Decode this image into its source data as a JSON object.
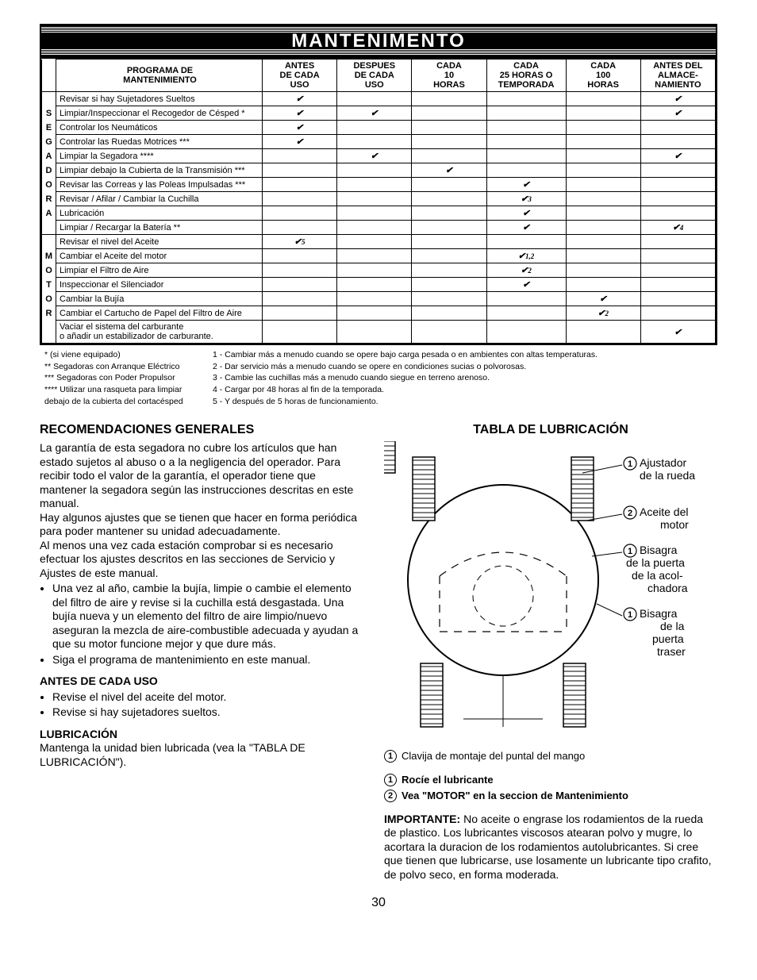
{
  "header": "MANTENIMENTO",
  "table_title_line1": "PROGRAMA DE",
  "table_title_line2": "MANTENIMIENTO",
  "columns": [
    "ANTES\nDE CADA\nUSO",
    "DESPUES\nDE CADA\nUSO",
    "CADA\n10\nHORAS",
    "CADA\n25 HORAS O\nTEMPORADA",
    "CADA\n100\nHORAS",
    "ANTES DEL\nALMACE-\nNAMIENTO"
  ],
  "side_letters_1": [
    "S",
    "E",
    "G",
    "A",
    "D",
    "O",
    "R",
    "A"
  ],
  "side_letters_2": [
    "M",
    "O",
    "T",
    "O",
    "R"
  ],
  "rows": [
    {
      "label": "Revisar si hay Sujetadores Sueltos",
      "checks": [
        "✔",
        "",
        "",
        "",
        "",
        "✔"
      ]
    },
    {
      "label": "Limpiar/Inspeccionar el Recogedor de Césped *",
      "checks": [
        "✔",
        "✔",
        "",
        "",
        "",
        "✔"
      ]
    },
    {
      "label": "Controlar los Neumáticos",
      "checks": [
        "✔",
        "",
        "",
        "",
        "",
        ""
      ]
    },
    {
      "label": "Controlar las Ruedas Motrices ***",
      "checks": [
        "✔",
        "",
        "",
        "",
        "",
        ""
      ]
    },
    {
      "label": "Limpiar la Segadora ****",
      "checks": [
        "",
        "✔",
        "",
        "",
        "",
        "✔"
      ]
    },
    {
      "label": "Limpiar debajo la Cubierta de la Transmisión ***",
      "checks": [
        "",
        "",
        "✔",
        "",
        "",
        ""
      ]
    },
    {
      "label": "Revisar las Correas y las Poleas Impulsadas ***",
      "checks": [
        "",
        "",
        "",
        "✔",
        "",
        ""
      ]
    },
    {
      "label": "Revisar / Afilar / Cambiar la Cuchilla",
      "checks": [
        "",
        "",
        "",
        "✔3",
        "",
        ""
      ]
    },
    {
      "label": "Lubricación",
      "checks": [
        "",
        "",
        "",
        "✔",
        "",
        ""
      ]
    },
    {
      "label": "Limpiar / Recargar la Batería **",
      "checks": [
        "",
        "",
        "",
        "✔",
        "",
        "✔4"
      ]
    },
    {
      "label": "Revisar el nivel del Aceite",
      "checks": [
        "✔5",
        "",
        "",
        "",
        "",
        ""
      ]
    },
    {
      "label": "Cambiar el Aceite del motor",
      "checks": [
        "",
        "",
        "",
        "✔1,2",
        "",
        ""
      ]
    },
    {
      "label": "Limpiar el Filtro de Aire",
      "checks": [
        "",
        "",
        "",
        "✔2",
        "",
        ""
      ]
    },
    {
      "label": "Inspeccionar el Silenciador",
      "checks": [
        "",
        "",
        "",
        "✔",
        "",
        ""
      ]
    },
    {
      "label": "Cambiar la Bujía",
      "checks": [
        "",
        "",
        "",
        "",
        "✔",
        ""
      ]
    },
    {
      "label": "Cambiar el Cartucho de Papel del Filtro de Aire",
      "checks": [
        "",
        "",
        "",
        "",
        "✔2",
        ""
      ]
    },
    {
      "label": "Vaciar el sistema del carburante\no añadir un estabilizador de carburante.",
      "checks": [
        "",
        "",
        "",
        "",
        "",
        "✔"
      ]
    }
  ],
  "footnotes_left": [
    "* (si viene equipado)",
    "** Segadoras con Arranque Eléctrico",
    "*** Segadoras con Poder Propulsor",
    "**** Utilizar una rasqueta para limpiar",
    "debajo de la cubierta del cortacésped"
  ],
  "footnotes_right": [
    "1 - Cambiar más a menudo cuando se opere bajo carga pesada o en ambientes con altas temperaturas.",
    "2 - Dar servicio más a menudo cuando se opere en condiciones sucias o polvorosas.",
    "3 - Cambie las cuchillas más a menudo cuando siegue en terreno arenoso.",
    "4 - Cargar por 48 horas al fin de la temporada.",
    "5 - Y después de 5 horas de funcionamiento."
  ],
  "left_col": {
    "h_general": "RECOMENDACIONES GENERALES",
    "p1": "La garantía de esta segadora no cubre los artículos que han estado sujetos al abuso o a la negligencia del operador. Para recibir todo el valor de la garantía, el operador tiene que mantener la segadora según las instrucciones descritas en este manual.",
    "p2": "Hay algunos ajustes que se tienen que hacer en forma periódica para poder mantener su unidad adecuadamente.",
    "p3": "Al menos una vez cada estación comprobar si es necesario efectuar los ajustes descritos en las secciones de Servicio y Ajustes de este manual.",
    "li1": "Una vez al año, cambie la bujía, limpie o cambie el elemento del filtro de aire y revise si la cuchilla está desgastada. Una bujía nueva y un elemento del filtro de aire limpio/nuevo aseguran la mezcla de aire-combustible adecuada y ayudan a que su motor funcione mejor y que dure más.",
    "li2": "Siga el programa de mantenimiento en este manual.",
    "h_antes": "ANTES DE CADA USO",
    "antes_li1": "Revise el nivel del aceite del motor.",
    "antes_li2": "Revise si hay sujetadores sueltos.",
    "h_lub": "LUBRICACIÓN",
    "lub_p": "Mantenga la unidad bien lubricada (vea la \"TABLA DE LUBRICACIÓN\")."
  },
  "right_col": {
    "h_tabla": "TABLA DE LUBRICACIÓN",
    "ann1": "Ajustador de la rueda",
    "ann2": "Aceite del motor",
    "ann3": "Bisagra de la puerta de la acolchadora",
    "ann4": "Bisagra de la puerta traser",
    "caption": "Clavija de montaje del puntal del mango",
    "leg1": "Rocíe el lubricante",
    "leg2": "Vea \"MOTOR\" en la seccion de Mantenimiento",
    "imp_label": "IMPORTANTE:",
    "imp": "No aceite o engrase los rodamientos de la rueda de plastico. Los lubricantes viscosos atearan polvo y mugre, lo acortara la duracion de los rodamientos autolubricantes. Si cree que tienen que lubricarse, use losamente un lubricante tipo crafito, de polvo seco, en forma moderada."
  },
  "page_number": "30"
}
